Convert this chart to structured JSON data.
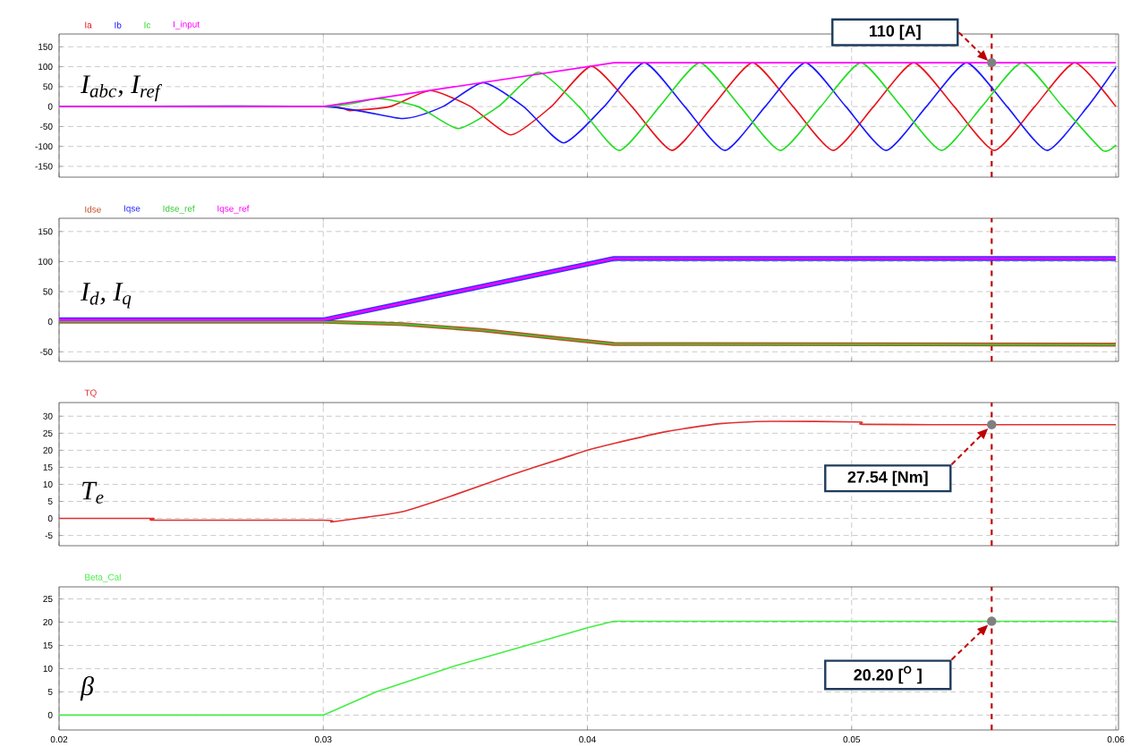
{
  "chart_data": [
    {
      "type": "line",
      "ylabel": "I$_{abc}$, I$_{ref}$",
      "xlim": [
        0.02,
        0.0601
      ],
      "xticks": [
        0.02,
        0.03,
        0.04,
        0.05,
        0.06
      ],
      "ylim": [
        -177,
        182
      ],
      "yticks": [
        150,
        100,
        50,
        0,
        -50,
        -100,
        -150
      ],
      "tick_labels": "y",
      "grid": true,
      "legend": "top left",
      "series": [
        {
          "name": "Ia",
          "color": "#e8141b",
          "x": [
            0.02,
            0.03,
            0.031,
            0.03253,
            0.03405,
            0.03558,
            0.0371,
            0.03863,
            0.04015,
            0.04168,
            0.0432,
            0.04473,
            0.04625,
            0.04778,
            0.0493,
            0.05083,
            0.05235,
            0.05388,
            0.0554,
            0.05693,
            0.05845,
            0.06
          ],
          "values": [
            0,
            0,
            -10,
            0,
            40,
            0,
            -71,
            0,
            101,
            0,
            -110,
            0,
            110,
            0,
            -110,
            0,
            110,
            0,
            -110,
            0,
            110,
            0
          ]
        },
        {
          "name": "Ib",
          "color": "#1a1aff",
          "x": [
            0.02,
            0.03,
            0.033,
            0.03453,
            0.03605,
            0.03758,
            0.0391,
            0.04063,
            0.04215,
            0.04368,
            0.0452,
            0.04673,
            0.04825,
            0.04978,
            0.0513,
            0.05283,
            0.05435,
            0.05588,
            0.0574,
            0.05893,
            0.06
          ],
          "values": [
            0,
            0,
            -30,
            0,
            60,
            0,
            -91,
            0,
            110,
            0,
            -110,
            0,
            110,
            0,
            -110,
            0,
            110,
            0,
            -110,
            0,
            98
          ]
        },
        {
          "name": "Ic",
          "color": "#22dd22",
          "x": [
            0.02,
            0.03,
            0.03205,
            0.03358,
            0.0351,
            0.03663,
            0.03815,
            0.03968,
            0.0412,
            0.04273,
            0.04425,
            0.04578,
            0.0473,
            0.04883,
            0.05035,
            0.05188,
            0.0534,
            0.05493,
            0.05645,
            0.05798,
            0.0595,
            0.06
          ],
          "values": [
            0,
            0,
            20,
            0,
            -55,
            0,
            86,
            0,
            -110,
            0,
            110,
            0,
            -110,
            0,
            110,
            0,
            -110,
            0,
            110,
            0,
            -110,
            -96
          ]
        },
        {
          "name": "I_input",
          "color": "#ff00ff",
          "x": [
            0.02,
            0.03,
            0.041,
            0.06
          ],
          "values": [
            0,
            0,
            110,
            110
          ]
        }
      ],
      "ref_lines": [
        {
          "axis": "x",
          "value": 0.0553,
          "color": "#c00000",
          "line_style": "dashed"
        }
      ],
      "annotations": [
        "110 [A]"
      ]
    },
    {
      "type": "line",
      "ylabel": "I$_{d}$, I$_{q}$",
      "xlim": [
        0.02,
        0.0601
      ],
      "xticks": [
        0.02,
        0.03,
        0.04,
        0.05,
        0.06
      ],
      "ylim": [
        -66,
        172
      ],
      "yticks": [
        150,
        100,
        50,
        0,
        -50
      ],
      "tick_labels": "y",
      "grid": true,
      "legend": "top left",
      "series": [
        {
          "name": "Idse",
          "color": "#c0502a",
          "x": [
            0.02,
            0.03,
            0.033,
            0.036,
            0.039,
            0.041,
            0.06
          ],
          "values": [
            0,
            0,
            -4,
            -14,
            -28,
            -37,
            -38
          ]
        },
        {
          "name": "Iqse",
          "color": "#3333ff",
          "x": [
            0.02,
            0.03,
            0.041,
            0.06
          ],
          "values": [
            3,
            3,
            105,
            105
          ]
        },
        {
          "name": "Idse_ref",
          "color": "#33cc33",
          "x": [
            0.02,
            0.03,
            0.033,
            0.036,
            0.039,
            0.041,
            0.06
          ],
          "values": [
            0,
            0,
            -4,
            -14,
            -28,
            -37,
            -38
          ]
        },
        {
          "name": "Iqse_ref",
          "color": "#ff00ff",
          "x": [
            0.02,
            0.03,
            0.041,
            0.06
          ],
          "values": [
            3,
            3,
            105,
            105
          ]
        }
      ],
      "ref_lines": [
        {
          "axis": "x",
          "value": 0.0553,
          "color": "#c00000",
          "line_style": "dashed"
        }
      ]
    },
    {
      "type": "line",
      "ylabel": "T$_{e}$",
      "xlim": [
        0.02,
        0.0601
      ],
      "xticks": [
        0.02,
        0.03,
        0.04,
        0.05,
        0.06
      ],
      "ylim": [
        -8,
        34
      ],
      "yticks": [
        30,
        25,
        20,
        15,
        10,
        5,
        0,
        -5
      ],
      "tick_labels": "y",
      "grid": true,
      "legend": "top left",
      "series": [
        {
          "name": "TQ",
          "color": "#e03030",
          "x": [
            0.02,
            0.0235,
            0.0237,
            0.03,
            0.0303,
            0.031,
            0.033,
            0.035,
            0.037,
            0.039,
            0.04,
            0.041,
            0.043,
            0.045,
            0.047,
            0.0503,
            0.0505,
            0.0553,
            0.06
          ],
          "values": [
            0,
            0,
            -0.5,
            -0.5,
            -1,
            -0.3,
            2,
            7,
            12.5,
            17.5,
            20,
            22,
            25.5,
            27.8,
            28.5,
            28.3,
            27.6,
            27.5,
            27.5
          ]
        }
      ],
      "ref_lines": [
        {
          "axis": "x",
          "value": 0.0553,
          "color": "#c00000",
          "line_style": "dashed"
        }
      ],
      "annotations": [
        "27.54 [Nm]"
      ]
    },
    {
      "type": "line",
      "ylabel": "β",
      "xlim": [
        0.02,
        0.0601
      ],
      "xticks": [
        0.02,
        0.03,
        0.04,
        0.05,
        0.06
      ],
      "ylim": [
        -3.2,
        27.6
      ],
      "yticks": [
        25,
        20,
        15,
        10,
        5,
        0
      ],
      "grid": true,
      "legend": "top left",
      "series": [
        {
          "name": "Beta_Cal",
          "color": "#44ee44",
          "x": [
            0.02,
            0.03,
            0.032,
            0.035,
            0.0377,
            0.04,
            0.041,
            0.06
          ],
          "values": [
            0,
            0,
            5,
            10.6,
            15,
            18.8,
            20.2,
            20.2
          ]
        }
      ],
      "ref_lines": [
        {
          "axis": "x",
          "value": 0.0553,
          "color": "#c00000",
          "line_style": "dashed"
        }
      ],
      "annotations": [
        "20.20 [$^{O}$ ]"
      ]
    }
  ]
}
